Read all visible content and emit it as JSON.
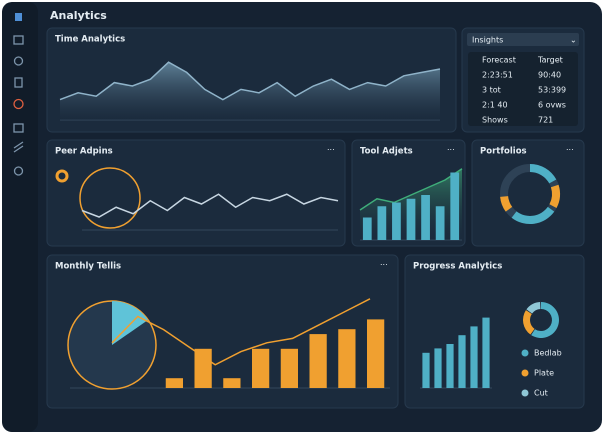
{
  "header": {
    "title": "Analytics"
  },
  "insights": {
    "title": "Insights",
    "rows": [
      [
        "Forecast",
        "Target"
      ],
      [
        "2:23:51",
        "90:40"
      ],
      [
        "3 tot",
        "53:399"
      ],
      [
        "2:1 40",
        "6 ovws"
      ],
      [
        "Shows",
        "721"
      ]
    ]
  },
  "panels": [
    {
      "title": "Time Analytics",
      "chart": {
        "type": "area",
        "color": "#8fb3c9",
        "ylim": [
          0,
          100
        ],
        "values": [
          30,
          40,
          35,
          55,
          50,
          60,
          85,
          70,
          45,
          30,
          45,
          40,
          55,
          35,
          50,
          60,
          45,
          55,
          50,
          65,
          70,
          75
        ]
      }
    },
    {
      "title": "Peer Adpins",
      "chart": {
        "type": "line",
        "color": "#c7d6e2",
        "ylim": [
          0,
          100
        ],
        "values": [
          30,
          20,
          35,
          25,
          45,
          30,
          50,
          40,
          55,
          35,
          50,
          45,
          55,
          40,
          50,
          45
        ]
      }
    },
    {
      "title": "Tool Adjets",
      "chart": {
        "type": "combo",
        "bar_color": "#4fb0c6",
        "line_color": "#3fae7a",
        "ylim": [
          0,
          100
        ],
        "bar_values": [
          30,
          45,
          50,
          55,
          60,
          45,
          90
        ],
        "line_values": [
          40,
          55,
          50,
          60,
          70,
          80,
          95
        ]
      }
    },
    {
      "title": "Portfolios",
      "chart": {
        "type": "gauge",
        "colors": [
          "#4fb0c6",
          "#f0a030",
          "#4fb0c6",
          "#f0a030"
        ],
        "values": [
          20,
          15,
          30,
          10
        ]
      }
    },
    {
      "title": "Monthly Tellis",
      "chart": {
        "type": "combo",
        "bar_color": "#f0a030",
        "line_color": "#f0a030",
        "ylim": [
          0,
          100
        ],
        "bar_values": [
          10,
          40,
          10,
          40,
          40,
          55,
          60,
          70
        ],
        "line_values": [
          40,
          70,
          55,
          35,
          15,
          30,
          40,
          45,
          60,
          75,
          90
        ]
      }
    },
    {
      "title": "Progress Analytics",
      "chart": {
        "type": "donutbar",
        "bar_color": "#4fb0c6",
        "ylim": [
          0,
          100
        ],
        "bar_values": [
          40,
          45,
          50,
          60,
          70,
          80
        ],
        "labels": [
          "Bedlab",
          "Plate",
          "Cut"
        ],
        "colors": [
          "#4fb0c6",
          "#f0a030",
          "#8fc7d6"
        ],
        "values": [
          60,
          25,
          15
        ]
      }
    }
  ]
}
